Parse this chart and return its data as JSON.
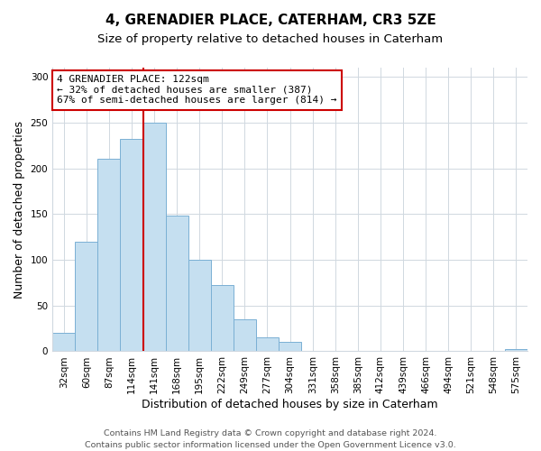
{
  "title": "4, GRENADIER PLACE, CATERHAM, CR3 5ZE",
  "subtitle": "Size of property relative to detached houses in Caterham",
  "xlabel": "Distribution of detached houses by size in Caterham",
  "ylabel": "Number of detached properties",
  "bar_labels": [
    "32sqm",
    "60sqm",
    "87sqm",
    "114sqm",
    "141sqm",
    "168sqm",
    "195sqm",
    "222sqm",
    "249sqm",
    "277sqm",
    "304sqm",
    "331sqm",
    "358sqm",
    "385sqm",
    "412sqm",
    "439sqm",
    "466sqm",
    "494sqm",
    "521sqm",
    "548sqm",
    "575sqm"
  ],
  "bar_values": [
    20,
    120,
    210,
    232,
    250,
    148,
    100,
    72,
    35,
    15,
    10,
    0,
    0,
    0,
    0,
    0,
    0,
    0,
    0,
    0,
    2
  ],
  "bar_color": "#c5dff0",
  "bar_edge_color": "#7ab0d4",
  "annotation_title": "4 GRENADIER PLACE: 122sqm",
  "annotation_line1": "← 32% of detached houses are smaller (387)",
  "annotation_line2": "67% of semi-detached houses are larger (814) →",
  "vline_color": "#cc0000",
  "annotation_box_color": "#ffffff",
  "annotation_box_edge": "#cc0000",
  "footer_line1": "Contains HM Land Registry data © Crown copyright and database right 2024.",
  "footer_line2": "Contains public sector information licensed under the Open Government Licence v3.0.",
  "ylim": [
    0,
    310
  ],
  "yticks": [
    0,
    50,
    100,
    150,
    200,
    250,
    300
  ],
  "title_fontsize": 11,
  "subtitle_fontsize": 9.5,
  "axis_label_fontsize": 9,
  "tick_fontsize": 7.5,
  "annotation_fontsize": 8,
  "footer_fontsize": 6.8,
  "background_color": "#ffffff",
  "grid_color": "#d0d8e0"
}
